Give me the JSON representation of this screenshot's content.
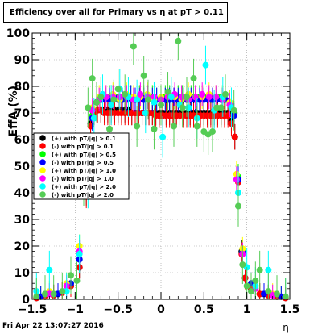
{
  "title": "Efficiency over all for Primary vs   η at pT > 0.11",
  "footer": "Fri Apr 22 13:07:27 2016",
  "chart_data": {
    "type": "scatter",
    "title": "Efficiency over all for Primary vs   η at pT > 0.11",
    "xlabel": "η",
    "ylabel": "EffA (%)",
    "xlim": [
      -1.5,
      1.5
    ],
    "ylim": [
      0,
      100
    ],
    "xticks": [
      -1.5,
      -1,
      -0.5,
      0,
      0.5,
      1,
      1.5
    ],
    "xtick_labels": [
      "−1.5",
      "−1",
      "−0.5",
      "0",
      "0.5",
      "1",
      "1.5"
    ],
    "yticks": [
      0,
      10,
      20,
      30,
      40,
      50,
      60,
      70,
      80,
      90,
      100
    ],
    "ytick_labels": [
      "0",
      "10",
      "20",
      "30",
      "40",
      "50",
      "60",
      "70",
      "80",
      "90",
      "100"
    ],
    "grid": true,
    "legend_position": "left",
    "series": [
      {
        "name": "(+) with pT/|q| > 0.1",
        "color": "#000000",
        "x": [
          -1.45,
          -1.35,
          -1.25,
          -1.15,
          -1.05,
          -0.95,
          -0.87,
          -0.82,
          -0.78,
          -0.74,
          -0.7,
          -0.66,
          -0.62,
          -0.58,
          -0.54,
          -0.5,
          -0.46,
          -0.42,
          -0.38,
          -0.34,
          -0.3,
          -0.26,
          -0.22,
          -0.18,
          -0.14,
          -0.1,
          -0.06,
          -0.02,
          0.02,
          0.06,
          0.1,
          0.14,
          0.18,
          0.22,
          0.26,
          0.3,
          0.34,
          0.38,
          0.42,
          0.46,
          0.5,
          0.54,
          0.58,
          0.62,
          0.66,
          0.7,
          0.74,
          0.78,
          0.82,
          0.86,
          0.9,
          0.94,
          0.98,
          1.05,
          1.15,
          1.25,
          1.35,
          1.45
        ],
        "y": [
          0.5,
          1,
          1.5,
          2.5,
          5,
          12,
          40,
          66,
          70,
          71,
          71,
          71,
          71,
          71,
          71,
          71,
          71,
          71,
          71,
          70,
          70,
          70,
          70,
          70,
          70,
          70,
          70,
          70,
          70,
          70,
          70,
          70,
          70,
          70,
          70,
          70,
          70,
          70,
          70,
          70,
          70,
          70,
          70,
          70,
          70,
          70,
          70,
          70,
          67,
          61,
          45,
          18,
          8,
          4,
          2,
          1.5,
          1,
          0.5
        ]
      },
      {
        "name": "(-) with pT/|q| > 0.1",
        "color": "#ff0000",
        "x": [
          -1.45,
          -1.35,
          -1.25,
          -1.15,
          -1.05,
          -0.95,
          -0.87,
          -0.82,
          -0.78,
          -0.74,
          -0.7,
          -0.66,
          -0.62,
          -0.58,
          -0.54,
          -0.5,
          -0.46,
          -0.42,
          -0.38,
          -0.34,
          -0.3,
          -0.26,
          -0.22,
          -0.18,
          -0.14,
          -0.1,
          -0.06,
          -0.02,
          0.02,
          0.06,
          0.1,
          0.14,
          0.18,
          0.22,
          0.26,
          0.3,
          0.34,
          0.38,
          0.42,
          0.46,
          0.5,
          0.54,
          0.58,
          0.62,
          0.66,
          0.7,
          0.74,
          0.78,
          0.82,
          0.86,
          0.9,
          0.94,
          0.98,
          1.05,
          1.15,
          1.25,
          1.35,
          1.45
        ],
        "y": [
          0.5,
          1,
          1.5,
          2.5,
          5,
          12,
          39,
          65,
          70,
          71,
          71,
          70,
          70,
          70,
          70,
          70,
          70,
          70,
          70,
          70,
          70,
          70,
          70,
          70,
          70,
          70,
          69,
          69,
          69,
          69,
          69,
          69,
          69,
          69,
          69,
          69,
          69,
          69,
          69,
          69,
          69,
          69,
          69,
          69,
          69,
          69,
          69,
          69,
          66,
          61,
          44,
          17,
          8,
          4,
          2,
          1.5,
          1,
          0.5
        ]
      },
      {
        "name": "(+) with pT/|q| > 0.5",
        "color": "#00ff00",
        "x": [
          -1.4,
          -1.2,
          -1.05,
          -0.95,
          -0.85,
          -0.8,
          -0.75,
          -0.7,
          -0.65,
          -0.6,
          -0.55,
          -0.5,
          -0.45,
          -0.4,
          -0.35,
          -0.3,
          -0.25,
          -0.2,
          -0.15,
          -0.1,
          -0.05,
          0,
          0.05,
          0.1,
          0.15,
          0.2,
          0.25,
          0.3,
          0.35,
          0.4,
          0.45,
          0.5,
          0.55,
          0.6,
          0.65,
          0.7,
          0.75,
          0.8,
          0.85,
          0.9,
          0.95,
          1.05,
          1.2,
          1.4
        ],
        "y": [
          1,
          2,
          6,
          15,
          44,
          69,
          74,
          75,
          75,
          76,
          76,
          76,
          75,
          76,
          76,
          75,
          76,
          76,
          75,
          76,
          75,
          75,
          76,
          76,
          75,
          76,
          76,
          75,
          76,
          75,
          76,
          76,
          75,
          75,
          76,
          76,
          75,
          74,
          70,
          46,
          18,
          6,
          2,
          1
        ]
      },
      {
        "name": "(-) with pT/|q| > 0.5",
        "color": "#0000ff",
        "x": [
          -1.4,
          -1.2,
          -1.05,
          -0.95,
          -0.85,
          -0.8,
          -0.75,
          -0.7,
          -0.65,
          -0.6,
          -0.55,
          -0.5,
          -0.45,
          -0.4,
          -0.35,
          -0.3,
          -0.25,
          -0.2,
          -0.15,
          -0.1,
          -0.05,
          0,
          0.05,
          0.1,
          0.15,
          0.2,
          0.25,
          0.3,
          0.35,
          0.4,
          0.45,
          0.5,
          0.55,
          0.6,
          0.65,
          0.7,
          0.75,
          0.8,
          0.85,
          0.9,
          0.95,
          1.05,
          1.2,
          1.4
        ],
        "y": [
          1,
          2,
          6,
          15,
          43,
          68,
          74,
          75,
          75,
          75,
          76,
          75,
          75,
          75,
          76,
          75,
          75,
          75,
          75,
          75,
          75,
          75,
          75,
          75,
          75,
          75,
          75,
          75,
          75,
          75,
          75,
          75,
          75,
          75,
          75,
          75,
          75,
          74,
          69,
          45,
          18,
          6,
          2,
          1
        ]
      },
      {
        "name": "(+) with pT/|q| > 1.0",
        "color": "#ffff00",
        "x": [
          -1.3,
          -1.1,
          -0.95,
          -0.85,
          -0.8,
          -0.72,
          -0.64,
          -0.56,
          -0.48,
          -0.4,
          -0.32,
          -0.24,
          -0.16,
          -0.08,
          0,
          0.08,
          0.16,
          0.24,
          0.32,
          0.4,
          0.48,
          0.56,
          0.64,
          0.72,
          0.8,
          0.88,
          0.95,
          1.1,
          1.3
        ],
        "y": [
          3,
          6,
          20,
          48,
          72,
          76,
          76,
          77,
          75,
          77,
          76,
          76,
          77,
          75,
          76,
          77,
          76,
          75,
          77,
          76,
          76,
          77,
          76,
          76,
          74,
          47,
          19,
          5,
          2
        ]
      },
      {
        "name": "(-) with pT/|q| > 1.0",
        "color": "#ff00ff",
        "x": [
          -1.3,
          -1.1,
          -0.95,
          -0.85,
          -0.8,
          -0.72,
          -0.64,
          -0.56,
          -0.48,
          -0.4,
          -0.32,
          -0.24,
          -0.16,
          -0.08,
          0,
          0.08,
          0.16,
          0.24,
          0.32,
          0.4,
          0.48,
          0.56,
          0.64,
          0.72,
          0.8,
          0.88,
          0.95,
          1.1,
          1.3
        ],
        "y": [
          2,
          5,
          18,
          46,
          71,
          75,
          76,
          76,
          76,
          76,
          75,
          77,
          76,
          76,
          75,
          76,
          77,
          76,
          75,
          76,
          77,
          76,
          76,
          75,
          73,
          45,
          17,
          4,
          1.5
        ]
      },
      {
        "name": "(+) with pT/|q| > 2.0",
        "color": "#00ffff",
        "x": [
          -1.45,
          -1.3,
          -1.1,
          -0.95,
          -0.85,
          -0.78,
          -0.68,
          -0.58,
          -0.48,
          -0.38,
          -0.28,
          -0.18,
          -0.08,
          0.02,
          0.12,
          0.22,
          0.32,
          0.42,
          0.52,
          0.62,
          0.72,
          0.82,
          0.9,
          1.0,
          1.1,
          1.25,
          1.45
        ],
        "y": [
          3,
          11,
          3,
          17,
          42,
          68,
          77,
          73,
          79,
          76,
          75,
          70,
          74,
          61,
          76,
          73,
          72,
          68,
          88,
          71,
          76,
          72,
          40,
          12,
          5,
          11,
          1
        ]
      },
      {
        "name": "(-) with pT/|q| > 2.0",
        "color": "#55cc55",
        "x": [
          -1.45,
          -1.35,
          -1.25,
          -1.15,
          -1.05,
          -0.98,
          -0.9,
          -0.85,
          -0.8,
          -0.75,
          -0.7,
          -0.6,
          -0.55,
          -0.5,
          -0.42,
          -0.32,
          -0.28,
          -0.2,
          -0.15,
          -0.08,
          0,
          0.08,
          0.15,
          0.2,
          0.25,
          0.3,
          0.38,
          0.42,
          0.5,
          0.55,
          0.6,
          0.65,
          0.7,
          0.75,
          0.85,
          0.9,
          0.95,
          1.0,
          1.05,
          1.1,
          1.15,
          1.25,
          1.35,
          1.45
        ],
        "y": [
          1,
          2,
          2,
          3,
          9,
          7,
          43,
          72,
          83,
          74,
          76,
          64,
          75,
          79,
          77,
          95,
          65,
          84,
          75,
          64,
          73,
          78,
          65,
          97,
          72,
          76,
          83,
          65,
          63,
          62,
          63,
          72,
          72,
          77,
          71,
          35,
          13,
          5,
          3,
          7,
          11,
          3,
          2,
          1
        ]
      }
    ]
  }
}
